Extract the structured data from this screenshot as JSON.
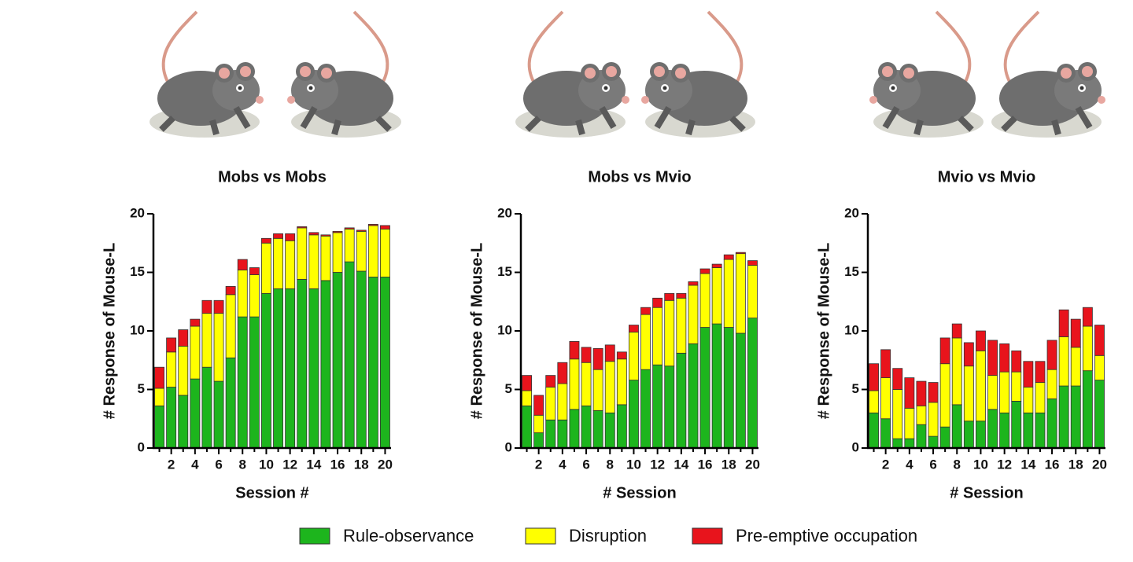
{
  "chart_data": [
    {
      "type": "bar",
      "stacked": true,
      "title": "Mobs vs Mobs",
      "ylabel": "# Response of Mouse-L",
      "xlabel": "Session #",
      "categories": [
        null,
        "2",
        null,
        "4",
        null,
        "6",
        null,
        "8",
        null,
        "10",
        null,
        "12",
        null,
        "14",
        null,
        "16",
        null,
        "18",
        null,
        "20"
      ],
      "ylim": [
        0,
        20
      ],
      "yticks": [
        0,
        5,
        10,
        15,
        20
      ],
      "series": [
        {
          "name": "Rule-observance",
          "color": "#1db51d",
          "values": [
            3.6,
            5.2,
            4.5,
            5.9,
            6.9,
            5.7,
            7.7,
            11.2,
            11.2,
            13.2,
            13.6,
            13.6,
            14.4,
            13.6,
            14.3,
            15.0,
            15.9,
            15.1,
            14.6,
            14.6
          ]
        },
        {
          "name": "Disruption",
          "color": "#ffff00",
          "values": [
            1.5,
            3.0,
            4.2,
            4.5,
            4.6,
            5.8,
            5.4,
            4.0,
            3.6,
            4.3,
            4.3,
            4.1,
            4.4,
            4.6,
            3.8,
            3.4,
            2.8,
            3.4,
            4.4,
            4.1
          ]
        },
        {
          "name": "Pre-emptive occupation",
          "color": "#e8141c",
          "values": [
            1.8,
            1.2,
            1.4,
            0.6,
            1.1,
            1.1,
            0.7,
            0.9,
            0.6,
            0.4,
            0.4,
            0.6,
            0.1,
            0.2,
            0.1,
            0.1,
            0.1,
            0.1,
            0.1,
            0.3
          ]
        }
      ]
    },
    {
      "type": "bar",
      "stacked": true,
      "title": "Mobs vs Mvio",
      "ylabel": "# Response of Mouse-L",
      "xlabel": "# Session",
      "categories": [
        null,
        "2",
        null,
        "4",
        null,
        "6",
        null,
        "8",
        null,
        "10",
        null,
        "12",
        null,
        "14",
        null,
        "16",
        null,
        "18",
        null,
        "20"
      ],
      "ylim": [
        0,
        20
      ],
      "yticks": [
        0,
        5,
        10,
        15,
        20
      ],
      "series": [
        {
          "values": [
            3.6,
            1.3,
            2.4,
            2.4,
            3.3,
            3.6,
            3.2,
            3.0,
            3.7,
            5.8,
            6.7,
            7.1,
            7.0,
            8.1,
            8.9,
            10.3,
            10.6,
            10.3,
            9.8,
            11.1
          ]
        },
        {
          "values": [
            1.3,
            1.5,
            2.8,
            3.1,
            4.3,
            3.7,
            3.5,
            4.4,
            3.9,
            4.1,
            4.7,
            4.9,
            5.6,
            4.7,
            5.0,
            4.6,
            4.8,
            5.8,
            6.8,
            4.5
          ]
        },
        {
          "values": [
            1.3,
            1.7,
            1.0,
            1.8,
            1.5,
            1.3,
            1.8,
            1.4,
            0.6,
            0.6,
            0.6,
            0.8,
            0.6,
            0.4,
            0.3,
            0.4,
            0.3,
            0.4,
            0.1,
            0.4
          ]
        }
      ]
    },
    {
      "type": "bar",
      "stacked": true,
      "title": "Mvio vs Mvio",
      "ylabel": "# Response of Mouse-L",
      "xlabel": "# Session",
      "categories": [
        null,
        "2",
        null,
        "4",
        null,
        "6",
        null,
        "8",
        null,
        "10",
        null,
        "12",
        null,
        "14",
        null,
        "16",
        null,
        "18",
        null,
        "20"
      ],
      "ylim": [
        0,
        20
      ],
      "yticks": [
        0,
        5,
        10,
        15,
        20
      ],
      "series": [
        {
          "values": [
            3.0,
            2.5,
            0.8,
            0.8,
            2.0,
            1.0,
            1.8,
            3.7,
            2.3,
            2.3,
            3.3,
            3.0,
            4.0,
            3.0,
            3.0,
            4.2,
            5.3,
            5.3,
            6.6,
            5.8
          ]
        },
        {
          "values": [
            1.9,
            3.5,
            4.2,
            2.6,
            1.6,
            2.9,
            5.4,
            5.7,
            4.7,
            6.0,
            2.9,
            3.5,
            2.5,
            2.2,
            2.6,
            2.5,
            4.2,
            3.3,
            3.8,
            2.1
          ]
        },
        {
          "values": [
            2.3,
            2.4,
            1.8,
            2.6,
            2.1,
            1.7,
            2.2,
            1.2,
            2.0,
            1.7,
            3.0,
            2.4,
            1.8,
            2.2,
            1.8,
            2.5,
            2.3,
            2.4,
            1.6,
            2.6
          ]
        }
      ]
    }
  ]
}
